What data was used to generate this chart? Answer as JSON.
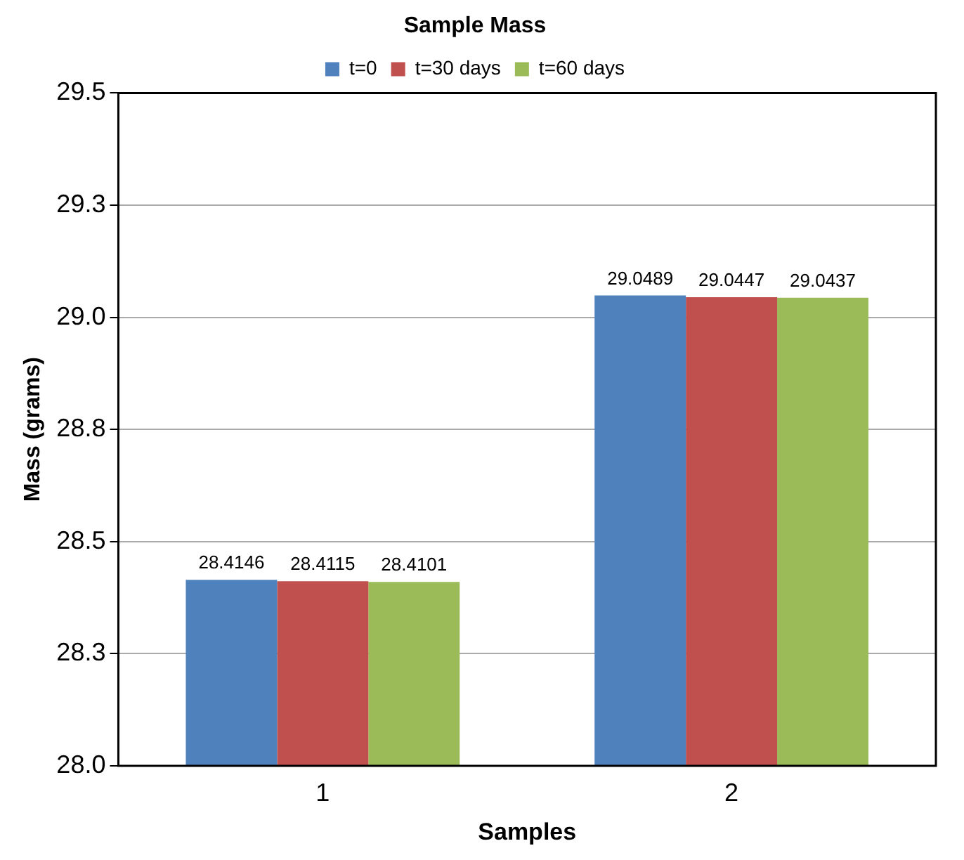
{
  "chart_data": {
    "type": "bar",
    "title": "Sample Mass",
    "xlabel": "Samples",
    "ylabel": "Mass (grams)",
    "categories": [
      "1",
      "2"
    ],
    "series": [
      {
        "name": "t=0",
        "color": "#4f81bd",
        "values": [
          28.4146,
          29.0489
        ]
      },
      {
        "name": "t=30 days",
        "color": "#c0504d",
        "values": [
          28.4115,
          29.0447
        ]
      },
      {
        "name": "t=60 days",
        "color": "#9bbb59",
        "values": [
          28.4101,
          29.0437
        ]
      }
    ],
    "ylim": [
      28,
      29.5
    ],
    "yticks": [
      {
        "value": 28,
        "label": "28.0"
      },
      {
        "value": 28.25,
        "label": "28.3"
      },
      {
        "value": 28.5,
        "label": "28.5"
      },
      {
        "value": 28.75,
        "label": "28.8"
      },
      {
        "value": 29,
        "label": "29.0"
      },
      {
        "value": 29.25,
        "label": "29.3"
      },
      {
        "value": 29.5,
        "label": "29.5"
      }
    ],
    "grid": "y",
    "legend": "top",
    "data_labels": true
  }
}
